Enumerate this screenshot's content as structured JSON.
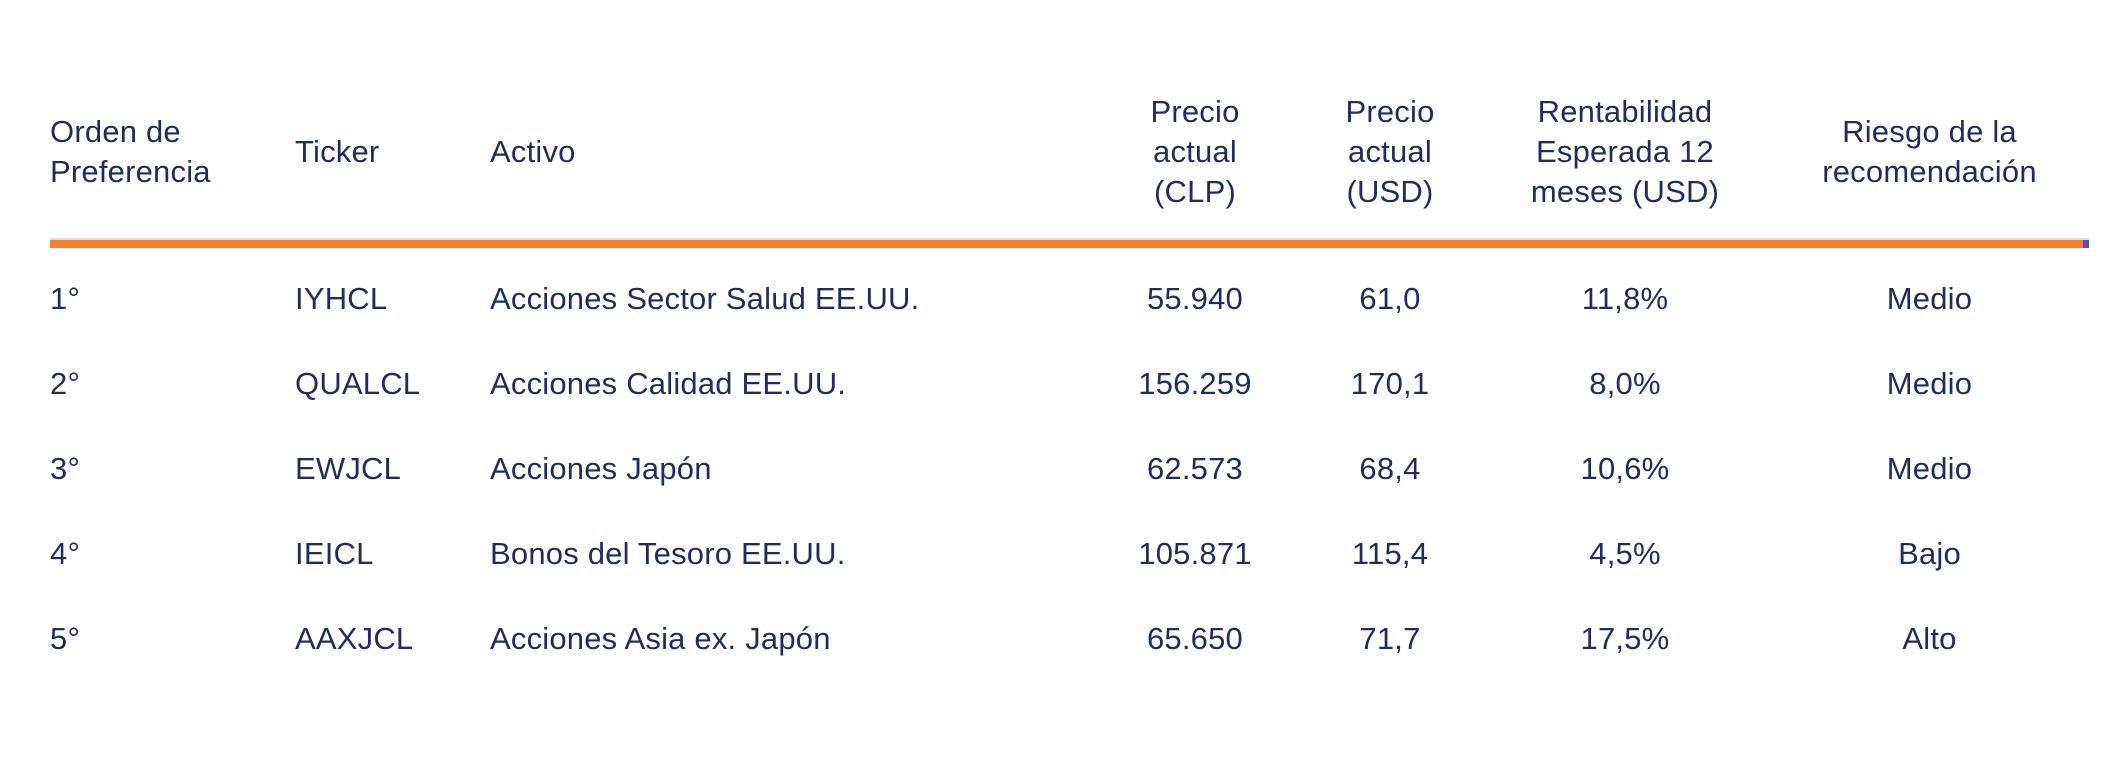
{
  "table": {
    "columns": [
      {
        "id": "orden",
        "lines": [
          "Orden de",
          "Preferencia"
        ],
        "align": "left"
      },
      {
        "id": "ticker",
        "lines": [
          "Ticker"
        ],
        "align": "left"
      },
      {
        "id": "activo",
        "lines": [
          "Activo"
        ],
        "align": "left"
      },
      {
        "id": "precio_clp",
        "lines": [
          "Precio",
          "actual",
          "(CLP)"
        ],
        "align": "center"
      },
      {
        "id": "precio_usd",
        "lines": [
          "Precio",
          "actual",
          "(USD)"
        ],
        "align": "center"
      },
      {
        "id": "rentabilidad",
        "lines": [
          "Rentabilidad",
          "Esperada 12",
          "meses (USD)"
        ],
        "align": "center"
      },
      {
        "id": "riesgo",
        "lines": [
          "Riesgo de la",
          "recomendación"
        ],
        "align": "center"
      }
    ],
    "rows": [
      [
        "1°",
        "IYHCL",
        "Acciones Sector Salud EE.UU.",
        "55.940",
        "61,0",
        "11,8%",
        "Medio"
      ],
      [
        "2°",
        "QUALCL",
        "Acciones Calidad EE.UU.",
        "156.259",
        "170,1",
        "8,0%",
        "Medio"
      ],
      [
        "3°",
        "EWJCL",
        "Acciones Japón",
        "62.573",
        "68,4",
        "10,6%",
        "Medio"
      ],
      [
        "4°",
        "IEICL",
        "Bonos del Tesoro EE.UU.",
        "105.871",
        "115,4",
        "4,5%",
        "Bajo"
      ],
      [
        "5°",
        "AAXJCL",
        "Acciones Asia ex. Japón",
        "65.650",
        "71,7",
        "17,5%",
        "Alto"
      ]
    ]
  },
  "colors": {
    "text_navy": "#1f2c5f",
    "rule_orange": "#f5812c",
    "rule_light": "#dcdbe6",
    "rule_cap_blue": "#4653d9"
  }
}
